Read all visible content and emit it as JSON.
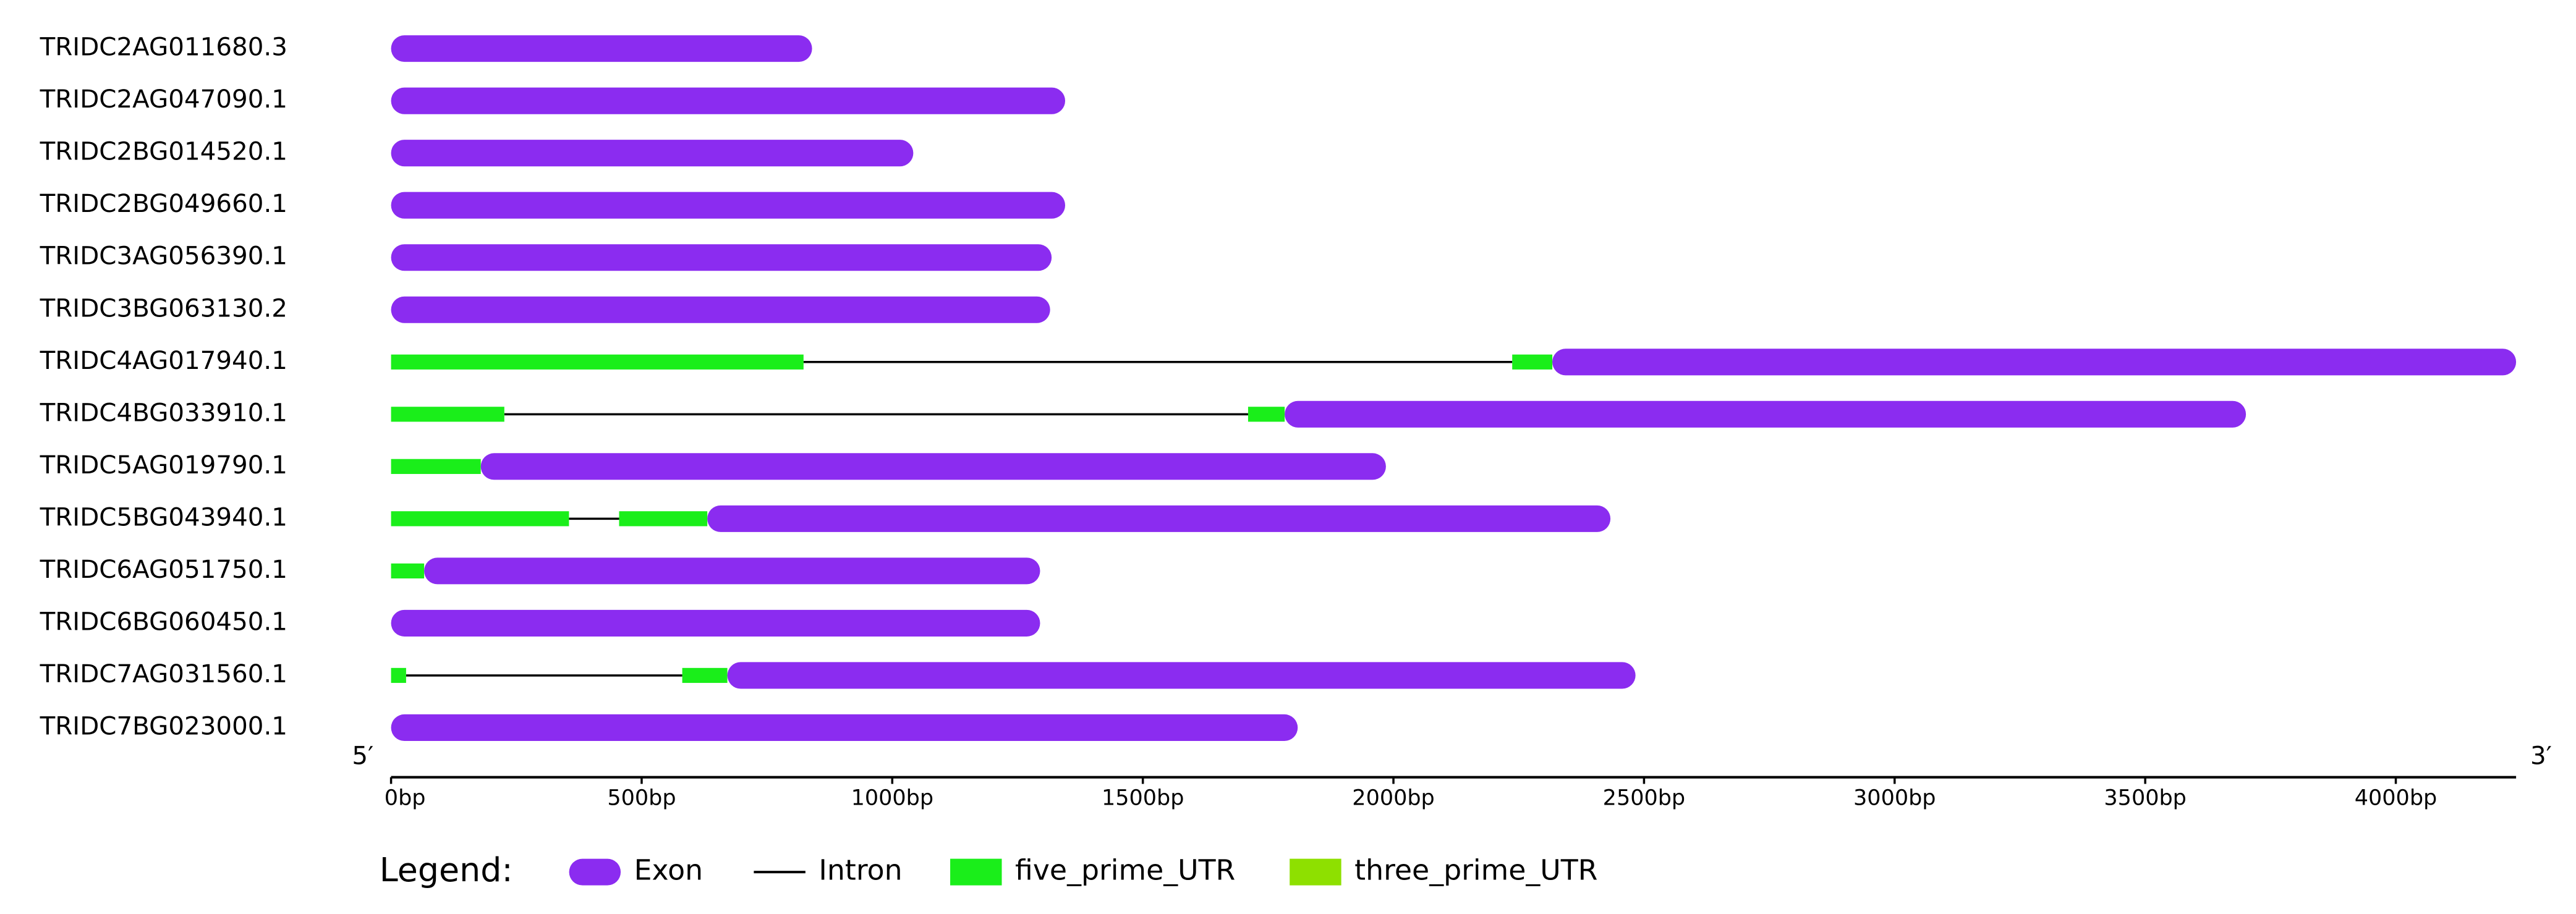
{
  "chart_data": {
    "type": "gene_structure",
    "xlim": [
      0,
      4240
    ],
    "xticks": [
      {
        "value": 0,
        "label": "0bp"
      },
      {
        "value": 500,
        "label": "500bp"
      },
      {
        "value": 1000,
        "label": "1000bp"
      },
      {
        "value": 1500,
        "label": "1500bp"
      },
      {
        "value": 2000,
        "label": "2000bp"
      },
      {
        "value": 2500,
        "label": "2500bp"
      },
      {
        "value": 3000,
        "label": "3000bp"
      },
      {
        "value": 3500,
        "label": "3500bp"
      },
      {
        "value": 4000,
        "label": "4000bp"
      }
    ],
    "start_label": "5′",
    "end_label": "3′",
    "legend_title": "Legend:",
    "legend": [
      {
        "name": "Exon",
        "color": "#8b2cf0"
      },
      {
        "name": "Intron",
        "color": "#000000"
      },
      {
        "name": "five_prime_UTR",
        "color": "#1aee1a"
      },
      {
        "name": "three_prime_UTR",
        "color": "#8ee000"
      }
    ],
    "genes": [
      {
        "name": "TRIDC2AG011680.3",
        "utr5": [],
        "exons": [
          [
            0,
            840
          ]
        ]
      },
      {
        "name": "TRIDC2AG047090.1",
        "utr5": [],
        "exons": [
          [
            0,
            1345
          ]
        ]
      },
      {
        "name": "TRIDC2BG014520.1",
        "utr5": [],
        "exons": [
          [
            0,
            1042
          ]
        ]
      },
      {
        "name": "TRIDC2BG049660.1",
        "utr5": [],
        "exons": [
          [
            0,
            1345
          ]
        ]
      },
      {
        "name": "TRIDC3AG056390.1",
        "utr5": [],
        "exons": [
          [
            0,
            1318
          ]
        ]
      },
      {
        "name": "TRIDC3BG063130.2",
        "utr5": [],
        "exons": [
          [
            0,
            1315
          ]
        ]
      },
      {
        "name": "TRIDC4AG017940.1",
        "utr5": [
          [
            0,
            823
          ],
          [
            2237,
            2317
          ]
        ],
        "exons": [
          [
            2317,
            4240
          ]
        ]
      },
      {
        "name": "TRIDC4BG033910.1",
        "utr5": [
          [
            0,
            226
          ],
          [
            1710,
            1783
          ]
        ],
        "exons": [
          [
            1783,
            3701
          ]
        ]
      },
      {
        "name": "TRIDC5AG019790.1",
        "utr5": [
          [
            0,
            179
          ]
        ],
        "exons": [
          [
            179,
            1985
          ]
        ]
      },
      {
        "name": "TRIDC5BG043940.1",
        "utr5": [
          [
            0,
            355
          ],
          [
            455,
            631
          ]
        ],
        "exons": [
          [
            631,
            2433
          ]
        ]
      },
      {
        "name": "TRIDC6AG051750.1",
        "utr5": [
          [
            0,
            66
          ]
        ],
        "exons": [
          [
            66,
            1295
          ]
        ]
      },
      {
        "name": "TRIDC6BG060450.1",
        "utr5": [],
        "exons": [
          [
            0,
            1295
          ]
        ]
      },
      {
        "name": "TRIDC7AG031560.1",
        "utr5": [
          [
            0,
            30
          ],
          [
            581,
            671
          ]
        ],
        "exons": [
          [
            671,
            2483
          ]
        ]
      },
      {
        "name": "TRIDC7BG023000.1",
        "utr5": [],
        "exons": [
          [
            0,
            1809
          ]
        ]
      }
    ]
  }
}
